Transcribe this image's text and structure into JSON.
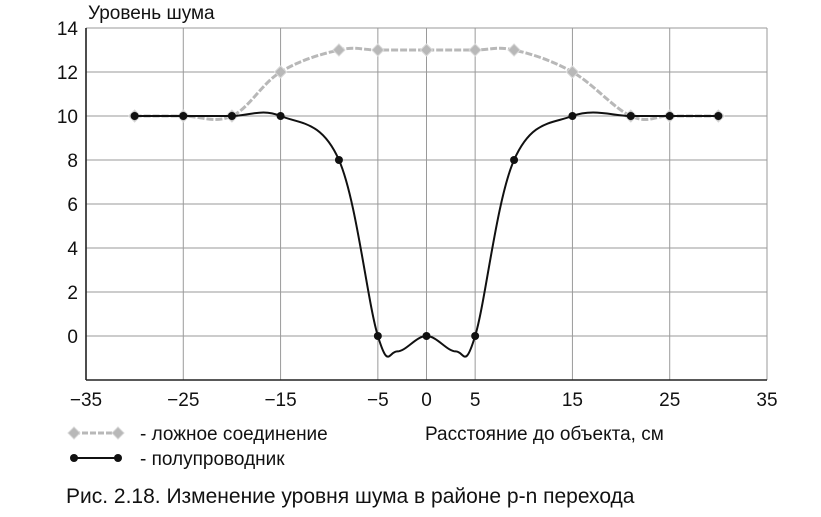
{
  "chart_data": {
    "type": "line",
    "title": "Рис. 2.18. Изменение уровня шума в районе p-n перехода",
    "xlabel": "Расстояние до объекта, см",
    "ylabel": "Уровень шума",
    "xlim": [
      -35,
      35
    ],
    "ylim": [
      -2,
      14
    ],
    "xticks": [
      -35,
      -25,
      -15,
      -5,
      0,
      5,
      15,
      25,
      35
    ],
    "xtick_labels": [
      "−35",
      "−25",
      "−15",
      "−5",
      "0",
      "5",
      "15",
      "25",
      "35"
    ],
    "yticks": [
      0,
      2,
      4,
      6,
      8,
      10,
      12,
      14
    ],
    "ytick_labels": [
      "0",
      "2",
      "4",
      "6",
      "8",
      "10",
      "12",
      "14"
    ],
    "grid": true,
    "legend_position": "bottom-left",
    "series": [
      {
        "name": "- ложное соединение",
        "color": "#b8b8b8",
        "marker": "diamond",
        "points": [
          [
            -30,
            10
          ],
          [
            -25,
            10
          ],
          [
            -20,
            10
          ],
          [
            -15,
            12
          ],
          [
            -9,
            13
          ],
          [
            -5,
            13
          ],
          [
            0,
            13
          ],
          [
            5,
            13
          ],
          [
            9,
            13
          ],
          [
            15,
            12
          ],
          [
            21,
            10
          ],
          [
            25,
            10
          ],
          [
            30,
            10
          ]
        ]
      },
      {
        "name": "- полупроводник",
        "color": "#111111",
        "marker": "circle",
        "points": [
          [
            -30,
            10
          ],
          [
            -25,
            10
          ],
          [
            -20,
            10
          ],
          [
            -15,
            10
          ],
          [
            -9,
            8
          ],
          [
            -5,
            0
          ],
          [
            -3,
            -0.7
          ],
          [
            0,
            0
          ],
          [
            3,
            -0.7
          ],
          [
            5,
            0
          ],
          [
            9,
            8
          ],
          [
            15,
            10
          ],
          [
            21,
            10
          ],
          [
            25,
            10
          ],
          [
            30,
            10
          ]
        ],
        "marker_points": [
          [
            -30,
            10
          ],
          [
            -25,
            10
          ],
          [
            -20,
            10
          ],
          [
            -15,
            10
          ],
          [
            -9,
            8
          ],
          [
            -5,
            0
          ],
          [
            0,
            0
          ],
          [
            5,
            0
          ],
          [
            9,
            8
          ],
          [
            15,
            10
          ],
          [
            21,
            10
          ],
          [
            25,
            10
          ],
          [
            30,
            10
          ]
        ]
      }
    ]
  }
}
